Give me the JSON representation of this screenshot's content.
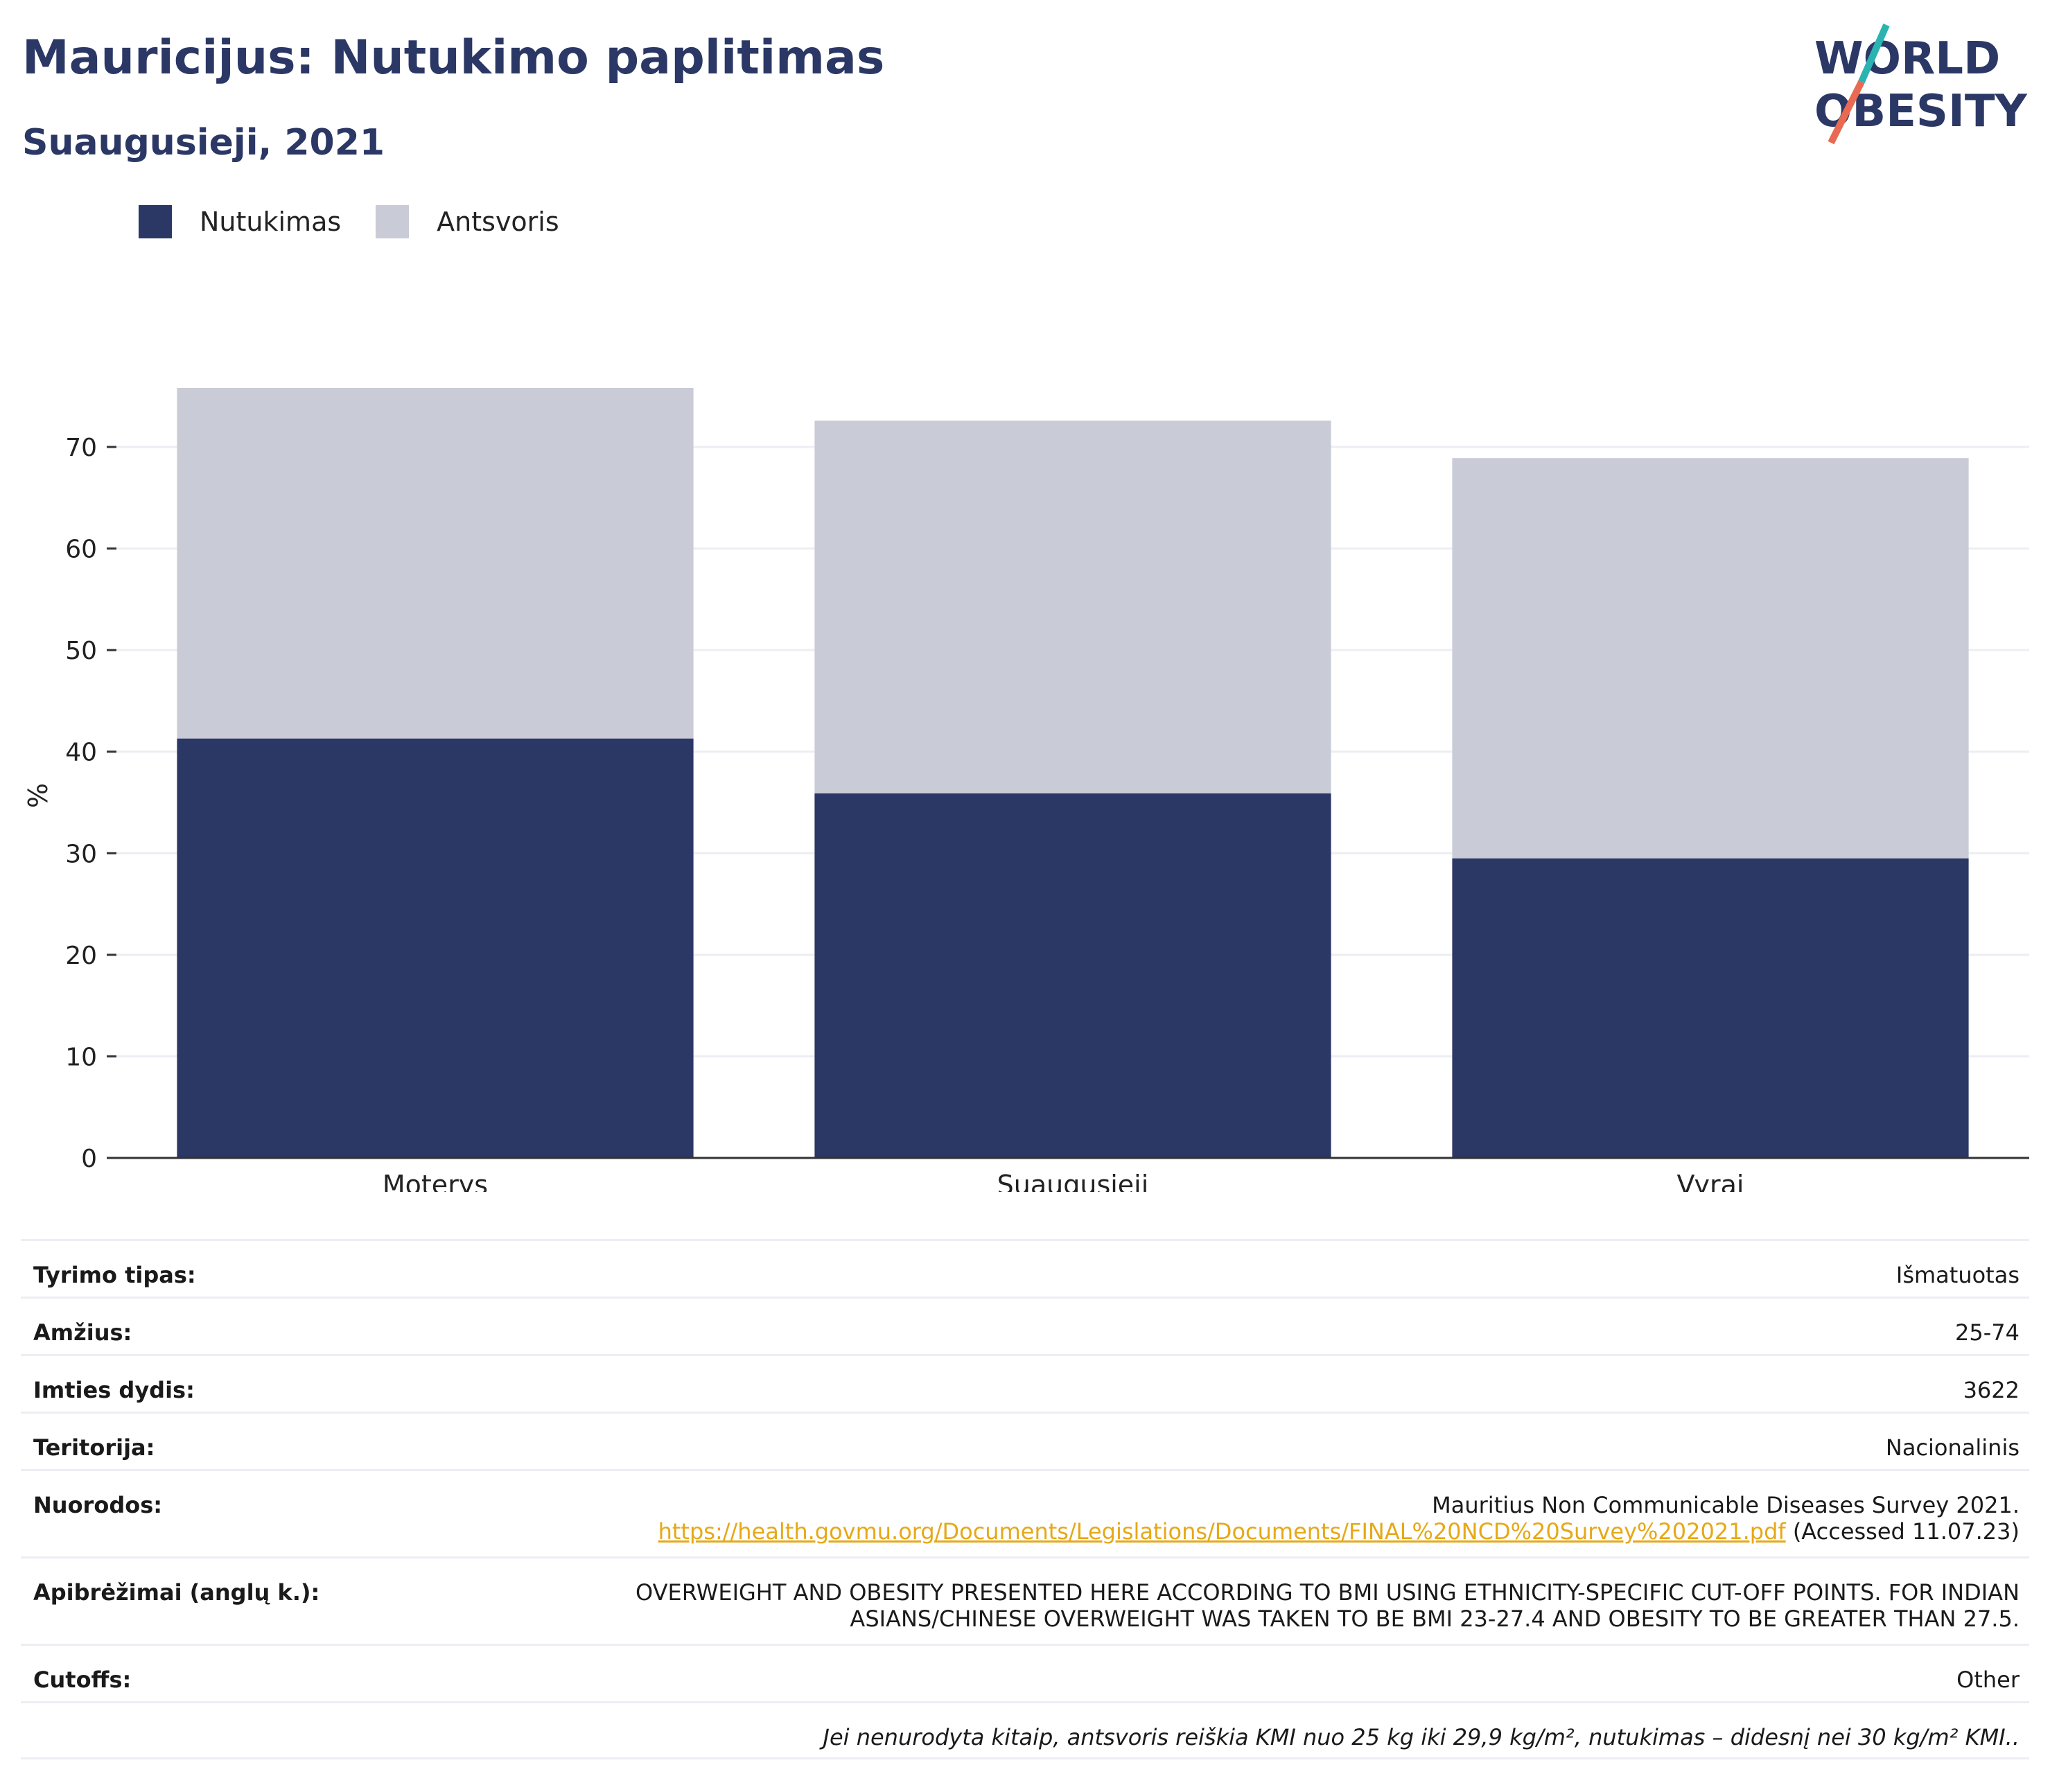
{
  "header": {
    "title": "Mauricijus: Nutukimo paplitimas",
    "subtitle": "Suaugusieji, 2021"
  },
  "logo": {
    "line1": "WORLD",
    "line2": "OBESITY"
  },
  "legend": {
    "items": [
      {
        "label": "Nutukimas",
        "color": "#2b3765"
      },
      {
        "label": "Antsvoris",
        "color": "#c9cbd7"
      }
    ]
  },
  "chart_data": {
    "type": "bar",
    "stacked": true,
    "categories": [
      "Moterys",
      "Suaugusieji",
      "Vyrai"
    ],
    "series": [
      {
        "name": "Nutukimas",
        "values": [
          41.3,
          35.9,
          29.5
        ],
        "color": "#2b3765"
      },
      {
        "name": "Antsvoris",
        "values": [
          34.5,
          36.7,
          39.4
        ],
        "color": "#c9cbd7"
      }
    ],
    "ylabel": "%",
    "ylim": [
      0,
      76
    ],
    "yticks": [
      0,
      10,
      20,
      30,
      40,
      50,
      60,
      70
    ],
    "grid": true
  },
  "info": {
    "rows": [
      {
        "key": "Tyrimo tipas:",
        "value": "Išmatuotas"
      },
      {
        "key": "Amžius:",
        "value": "25-74"
      },
      {
        "key": "Imties dydis:",
        "value": "3622"
      },
      {
        "key": "Teritorija:",
        "value": "Nacionalinis"
      }
    ],
    "references": {
      "key": "Nuorodos:",
      "line1": "Mauritius Non Communicable Diseases Survey 2021.",
      "link": "https://health.govmu.org/Documents/Legislations/Documents/FINAL%20NCD%20Survey%202021.pdf",
      "accessed": " (Accessed 11.07.23)"
    },
    "definitions": {
      "key": "Apibrėžimai (anglų k.):",
      "line1": "OVERWEIGHT AND OBESITY PRESENTED HERE ACCORDING TO BMI USING ETHNICITY-SPECIFIC CUT-OFF POINTS. FOR INDIAN",
      "line2": "ASIANS/CHINESE OVERWEIGHT WAS TAKEN TO BE BMI 23-27.4 AND OBESITY TO BE GREATER THAN 27.5."
    },
    "cutoffs": {
      "key": "Cutoffs:",
      "value": "Other"
    },
    "note": "Jei nenurodyta kitaip, antsvoris reiškia KMI nuo 25 kg iki 29,9 kg/m², nutukimas – didesnį nei 30 kg/m² KMI.."
  }
}
